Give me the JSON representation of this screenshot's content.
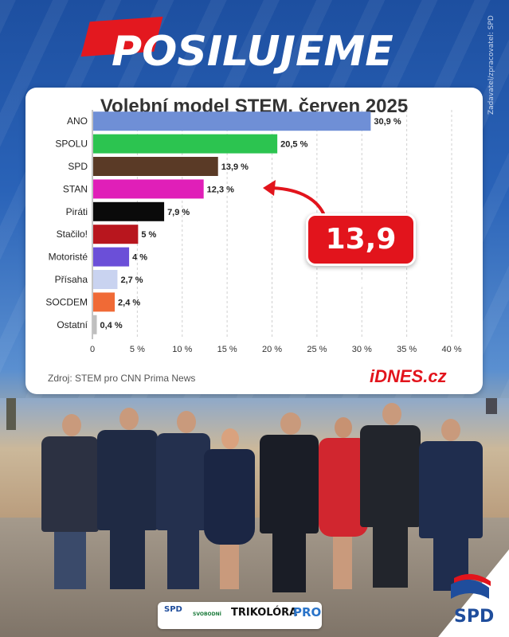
{
  "header": {
    "headline": "POSILUJEME",
    "side_credit": "Zadavatel/zpracovatel: SPD"
  },
  "chart_data": {
    "type": "bar",
    "orientation": "horizontal",
    "title": "Volební model STEM, červen 2025",
    "categories": [
      "ANO",
      "SPOLU",
      "SPD",
      "STAN",
      "Piráti",
      "Stačilo!",
      "Motoristé",
      "Přísaha",
      "SOCDEM",
      "Ostatní"
    ],
    "values": [
      30.9,
      20.5,
      13.9,
      12.3,
      7.9,
      5,
      4,
      2.7,
      2.4,
      0.4
    ],
    "value_labels": [
      "30,9 %",
      "20,5 %",
      "13,9 %",
      "12,3 %",
      "7,9 %",
      "5 %",
      "4 %",
      "2,7 %",
      "2,4 %",
      "0,4 %"
    ],
    "colors": [
      "#6f8fd6",
      "#2cc450",
      "#5a3a26",
      "#e01fb8",
      "#0a0a0a",
      "#b8161e",
      "#6b4fd8",
      "#c9d3f0",
      "#f06a36",
      "#bfbfbf"
    ],
    "x_ticks": [
      "0",
      "5 %",
      "10 %",
      "15 %",
      "20 %",
      "25 %",
      "30 %",
      "35 %",
      "40 %"
    ],
    "xlim": [
      0,
      40
    ],
    "grid": "vertical dashed",
    "source": "Zdroj: STEM pro CNN Prima News",
    "brand": "iDNES.cz"
  },
  "callout": {
    "text": "13,9 %",
    "color": "#e2141c"
  },
  "footer": {
    "logos": [
      "SPD",
      "SVOBODNÍ",
      "TRIKOLÓRA",
      "PRO"
    ],
    "corner_logo": "SPD"
  }
}
